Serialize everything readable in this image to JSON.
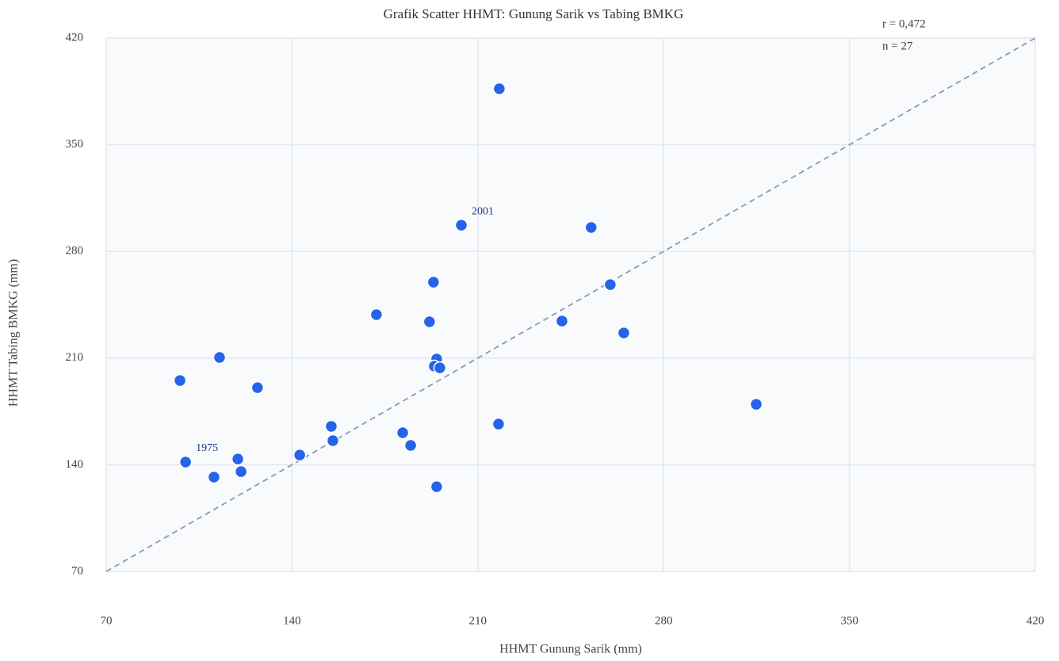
{
  "chart_data": {
    "type": "scatter",
    "title": "Grafik Scatter HHMT: Gunung Sarik vs Tabing BMKG",
    "xlabel": "HHMT Gunung Sarik (mm)",
    "ylabel": "HHMT Tabing BMKG (mm)",
    "annotations": [
      "r = 0,472",
      "n = 27"
    ],
    "color": "#2563eb",
    "grid": true,
    "reference_line": "y = x",
    "xlim": [
      70,
      420
    ],
    "xticks": [
      70,
      140,
      210,
      280,
      350,
      420
    ],
    "ylim": [
      70,
      420
    ],
    "yticks": [
      70,
      140,
      210,
      280,
      350,
      420
    ],
    "x": [
      218.1,
      203.8,
      252.7,
      193.3,
      259.9,
      171.8,
      191.8,
      241.7,
      265,
      112.7,
      194.5,
      193.6,
      195.7,
      97.8,
      127,
      314.9,
      154.8,
      217.8,
      181.7,
      155.4,
      184.7,
      142.9,
      119.6,
      99.9,
      120.8,
      110.6,
      194.5
    ],
    "values": [
      386.7,
      297.2,
      295.7,
      259.8,
      258.2,
      238.5,
      233.8,
      234.3,
      226.5,
      210.4,
      209.4,
      204.7,
      203.6,
      195.3,
      190.6,
      179.7,
      165.2,
      166.7,
      161.0,
      155.8,
      152.7,
      146.4,
      143.8,
      141.8,
      135.5,
      131.9,
      125.6
    ],
    "point_labels": [
      null,
      "2001",
      null,
      null,
      null,
      null,
      null,
      null,
      null,
      null,
      null,
      null,
      null,
      null,
      null,
      null,
      null,
      null,
      null,
      null,
      null,
      null,
      null,
      "1975",
      null,
      null,
      null
    ]
  }
}
